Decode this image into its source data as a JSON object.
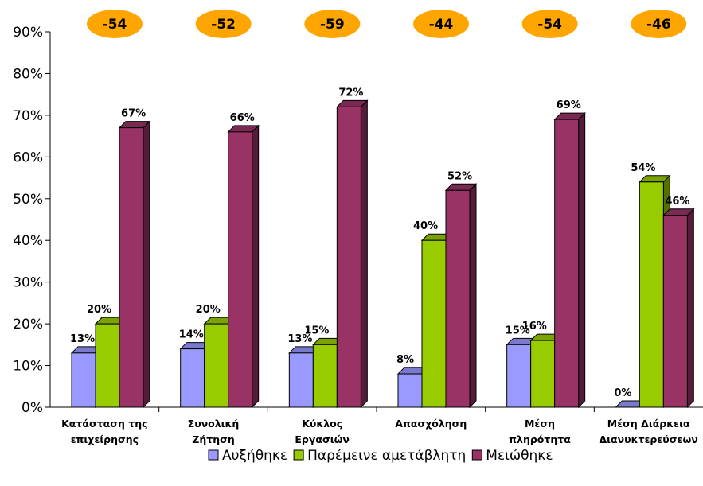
{
  "chart_data": {
    "type": "bar",
    "categories": [
      [
        "Κατάσταση της",
        "επιχείρησης"
      ],
      [
        "Συνολική",
        "Ζήτηση"
      ],
      [
        "Κύκλος",
        "Εργασιών"
      ],
      [
        "Απασχόληση"
      ],
      [
        "Μέση",
        "πληρότητα"
      ],
      [
        "Μέση Διάρκεια",
        "Διανυκτερεύσεων"
      ]
    ],
    "series": [
      {
        "name": "Αυξήθηκε",
        "values": [
          13,
          14,
          13,
          8,
          15,
          0
        ],
        "labels": [
          "13%",
          "14%",
          "13%",
          "8%",
          "15%",
          "0%"
        ],
        "color": "#9999ff"
      },
      {
        "name": "Παρέμεινε αμετάβλητη",
        "values": [
          20,
          20,
          15,
          40,
          16,
          54
        ],
        "labels": [
          "20%",
          "20%",
          "15%",
          "40%",
          "16%",
          "54%"
        ],
        "color": "#99cc00"
      },
      {
        "name": "Μειώθηκε",
        "values": [
          67,
          66,
          72,
          52,
          69,
          46
        ],
        "labels": [
          "67%",
          "66%",
          "72%",
          "52%",
          "69%",
          "46%"
        ],
        "color": "#993366"
      }
    ],
    "balance_badges": [
      "-54",
      "-52",
      "-59",
      "-44",
      "-54",
      "-46"
    ],
    "badge_color": "#ffa500",
    "ylim": [
      0,
      90
    ],
    "yticks": [
      "0%",
      "10%",
      "20%",
      "30%",
      "40%",
      "50%",
      "60%",
      "70%",
      "80%",
      "90%"
    ],
    "ytick_values": [
      0,
      10,
      20,
      30,
      40,
      50,
      60,
      70,
      80,
      90
    ],
    "legend_position": "bottom",
    "grid": false
  }
}
